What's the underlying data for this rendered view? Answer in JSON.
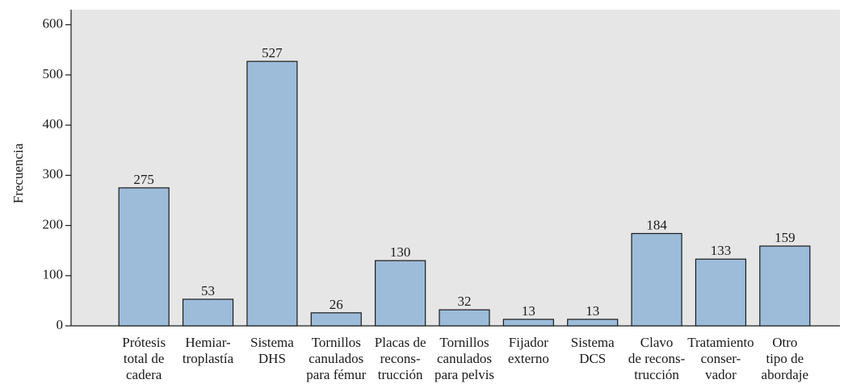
{
  "chart_data": {
    "type": "bar",
    "y_label": "Frecuencia",
    "categories": [
      [
        "Prótesis",
        "total de",
        "cadera"
      ],
      [
        "Hemiar-",
        "troplastía"
      ],
      [
        "Sistema",
        "DHS"
      ],
      [
        "Tornillos",
        "canulados",
        "para fémur"
      ],
      [
        "Placas de",
        "recons-",
        "trucción"
      ],
      [
        "Tornillos",
        "canulados",
        "para pelvis"
      ],
      [
        "Fijador",
        "externo"
      ],
      [
        "Sistema",
        "DCS"
      ],
      [
        "Clavo",
        "de recons-",
        "trucción"
      ],
      [
        "Tratamiento",
        "conser-",
        "vador"
      ],
      [
        "Otro",
        "tipo de",
        "abordaje"
      ]
    ],
    "values": [
      275,
      53,
      527,
      26,
      130,
      32,
      13,
      13,
      184,
      133,
      159
    ],
    "color": "#9dbcd9",
    "ylim": [
      0,
      630
    ],
    "yticks": [
      0,
      100,
      200,
      300,
      400,
      500,
      600
    ]
  }
}
